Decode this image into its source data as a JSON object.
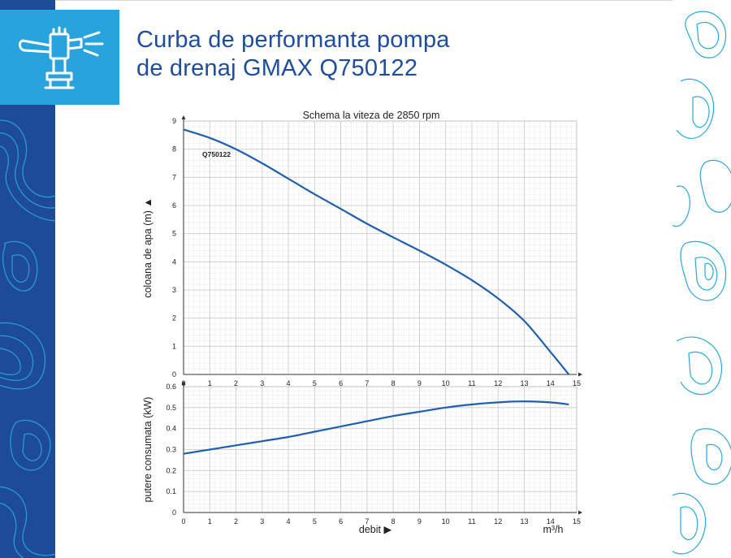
{
  "page": {
    "title_line1": "Curba de performanta pompa",
    "title_line2": "de drenaj GMAX Q750122",
    "icon": "sprinkler-icon",
    "colors": {
      "title": "#1f4d9e",
      "icon_box": "#29a3dd",
      "band": "#1e4a9a",
      "curve": "#1f5fae",
      "contour": "#2aa7df"
    }
  },
  "chart_data": [
    {
      "type": "line",
      "title": "Schema la viteza de 2850 rpm",
      "xlabel": "",
      "ylabel": "coloana de apa (m) ▲",
      "xlim": [
        0,
        15
      ],
      "ylim": [
        0,
        9
      ],
      "x_ticks": [
        "0",
        "1",
        "2",
        "3",
        "4",
        "5",
        "6",
        "7",
        "8",
        "9",
        "10",
        "11",
        "12",
        "13",
        "14",
        "15"
      ],
      "y_ticks": [
        "0",
        "1",
        "2",
        "3",
        "4",
        "5",
        "6",
        "7",
        "8",
        "9"
      ],
      "grid": true,
      "series": [
        {
          "name": "Q750122",
          "x": [
            0,
            1,
            2,
            3,
            4,
            5,
            6,
            7,
            8,
            9,
            10,
            11,
            12,
            13,
            14,
            14.7
          ],
          "y": [
            8.7,
            8.4,
            8.0,
            7.5,
            6.95,
            6.4,
            5.88,
            5.35,
            4.87,
            4.4,
            3.9,
            3.35,
            2.7,
            1.9,
            0.8,
            0
          ]
        }
      ]
    },
    {
      "type": "line",
      "title": "",
      "xlabel": "debit ▶",
      "x_unit": "m³/h",
      "ylabel": "putere consumata (kW)",
      "xlim": [
        0,
        15
      ],
      "ylim": [
        0,
        0.6
      ],
      "x_ticks": [
        "0",
        "1",
        "2",
        "3",
        "4",
        "5",
        "6",
        "7",
        "8",
        "9",
        "10",
        "11",
        "12",
        "13",
        "14",
        "15"
      ],
      "y_ticks": [
        "0",
        "0.1",
        "0.2",
        "0.3",
        "0.4",
        "0.5",
        "0.6"
      ],
      "grid": true,
      "series": [
        {
          "x": [
            0,
            1,
            2,
            3,
            4,
            5,
            6,
            7,
            8,
            9,
            10,
            11,
            12,
            13,
            14,
            14.7
          ],
          "y": [
            0.28,
            0.3,
            0.32,
            0.34,
            0.36,
            0.385,
            0.41,
            0.435,
            0.46,
            0.48,
            0.5,
            0.515,
            0.525,
            0.53,
            0.525,
            0.515
          ]
        }
      ]
    }
  ]
}
